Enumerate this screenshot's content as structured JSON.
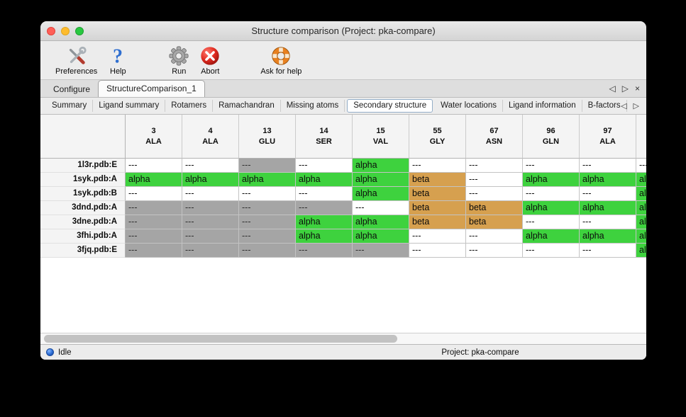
{
  "window": {
    "title": "Structure comparison (Project: pka-compare)"
  },
  "toolbar": {
    "items": [
      {
        "name": "preferences",
        "icon": "tools-icon",
        "label": "Preferences"
      },
      {
        "name": "help",
        "icon": "question-icon",
        "label": "Help"
      },
      {
        "name": "run",
        "icon": "gear-icon",
        "label": "Run"
      },
      {
        "name": "abort",
        "icon": "abort-icon",
        "label": "Abort"
      },
      {
        "name": "ask-for-help",
        "icon": "lifebuoy-icon",
        "label": "Ask for help"
      }
    ]
  },
  "tabbar": {
    "tabs": [
      {
        "label": "Configure",
        "selected": false
      },
      {
        "label": "StructureComparison_1",
        "selected": true
      }
    ],
    "controls": {
      "prev": "◁",
      "next": "▷",
      "close": "×"
    }
  },
  "subtabbar": {
    "tabs": [
      {
        "label": "Summary",
        "selected": false
      },
      {
        "label": "Ligand summary",
        "selected": false
      },
      {
        "label": "Rotamers",
        "selected": false
      },
      {
        "label": "Ramachandran",
        "selected": false
      },
      {
        "label": "Missing atoms",
        "selected": false
      },
      {
        "label": "Secondary structure",
        "selected": true
      },
      {
        "label": "Water locations",
        "selected": false
      },
      {
        "label": "Ligand information",
        "selected": false
      },
      {
        "label": "B-factors",
        "selected": false
      }
    ],
    "controls": {
      "prev": "◁",
      "next": "▷"
    }
  },
  "table": {
    "columns": [
      {
        "num": "3",
        "res": "ALA"
      },
      {
        "num": "4",
        "res": "ALA"
      },
      {
        "num": "13",
        "res": "GLU"
      },
      {
        "num": "14",
        "res": "SER"
      },
      {
        "num": "15",
        "res": "VAL"
      },
      {
        "num": "55",
        "res": "GLY"
      },
      {
        "num": "67",
        "res": "ASN"
      },
      {
        "num": "96",
        "res": "GLN"
      },
      {
        "num": "97",
        "res": "ALA"
      },
      {
        "num": "",
        "res": ""
      }
    ],
    "rows": [
      {
        "label": "1l3r.pdb:E",
        "cells": [
          {
            "text": "---",
            "type": "blank"
          },
          {
            "text": "---",
            "type": "blank"
          },
          {
            "text": "---",
            "type": "gray"
          },
          {
            "text": "---",
            "type": "blank"
          },
          {
            "text": "alpha",
            "type": "alpha"
          },
          {
            "text": "---",
            "type": "blank"
          },
          {
            "text": "---",
            "type": "blank"
          },
          {
            "text": "---",
            "type": "blank"
          },
          {
            "text": "---",
            "type": "blank"
          },
          {
            "text": "---",
            "type": "blank"
          }
        ]
      },
      {
        "label": "1syk.pdb:A",
        "cells": [
          {
            "text": "alpha",
            "type": "alpha"
          },
          {
            "text": "alpha",
            "type": "alpha"
          },
          {
            "text": "alpha",
            "type": "alpha"
          },
          {
            "text": "alpha",
            "type": "alpha"
          },
          {
            "text": "alpha",
            "type": "alpha"
          },
          {
            "text": "beta",
            "type": "beta"
          },
          {
            "text": "---",
            "type": "blank"
          },
          {
            "text": "alpha",
            "type": "alpha"
          },
          {
            "text": "alpha",
            "type": "alpha"
          },
          {
            "text": "alpha",
            "type": "alpha"
          }
        ]
      },
      {
        "label": "1syk.pdb:B",
        "cells": [
          {
            "text": "---",
            "type": "blank"
          },
          {
            "text": "---",
            "type": "blank"
          },
          {
            "text": "---",
            "type": "blank"
          },
          {
            "text": "---",
            "type": "blank"
          },
          {
            "text": "alpha",
            "type": "alpha"
          },
          {
            "text": "beta",
            "type": "beta"
          },
          {
            "text": "---",
            "type": "blank"
          },
          {
            "text": "---",
            "type": "blank"
          },
          {
            "text": "---",
            "type": "blank"
          },
          {
            "text": "alpha",
            "type": "alpha"
          }
        ]
      },
      {
        "label": "3dnd.pdb:A",
        "cells": [
          {
            "text": "---",
            "type": "gray"
          },
          {
            "text": "---",
            "type": "gray"
          },
          {
            "text": "---",
            "type": "gray"
          },
          {
            "text": "---",
            "type": "gray"
          },
          {
            "text": "---",
            "type": "blank"
          },
          {
            "text": "beta",
            "type": "beta"
          },
          {
            "text": "beta",
            "type": "beta"
          },
          {
            "text": "alpha",
            "type": "alpha"
          },
          {
            "text": "alpha",
            "type": "alpha"
          },
          {
            "text": "alpha",
            "type": "alpha"
          }
        ]
      },
      {
        "label": "3dne.pdb:A",
        "cells": [
          {
            "text": "---",
            "type": "gray"
          },
          {
            "text": "---",
            "type": "gray"
          },
          {
            "text": "---",
            "type": "gray"
          },
          {
            "text": "alpha",
            "type": "alpha"
          },
          {
            "text": "alpha",
            "type": "alpha"
          },
          {
            "text": "beta",
            "type": "beta"
          },
          {
            "text": "beta",
            "type": "beta"
          },
          {
            "text": "---",
            "type": "blank"
          },
          {
            "text": "---",
            "type": "blank"
          },
          {
            "text": "alpha",
            "type": "alpha"
          }
        ]
      },
      {
        "label": "3fhi.pdb:A",
        "cells": [
          {
            "text": "---",
            "type": "gray"
          },
          {
            "text": "---",
            "type": "gray"
          },
          {
            "text": "---",
            "type": "gray"
          },
          {
            "text": "alpha",
            "type": "alpha"
          },
          {
            "text": "alpha",
            "type": "alpha"
          },
          {
            "text": "---",
            "type": "blank"
          },
          {
            "text": "---",
            "type": "blank"
          },
          {
            "text": "alpha",
            "type": "alpha"
          },
          {
            "text": "alpha",
            "type": "alpha"
          },
          {
            "text": "alpha",
            "type": "alpha"
          }
        ]
      },
      {
        "label": "3fjq.pdb:E",
        "cells": [
          {
            "text": "---",
            "type": "gray"
          },
          {
            "text": "---",
            "type": "gray"
          },
          {
            "text": "---",
            "type": "gray"
          },
          {
            "text": "---",
            "type": "gray"
          },
          {
            "text": "---",
            "type": "gray"
          },
          {
            "text": "---",
            "type": "blank"
          },
          {
            "text": "---",
            "type": "blank"
          },
          {
            "text": "---",
            "type": "blank"
          },
          {
            "text": "---",
            "type": "blank"
          },
          {
            "text": "alpha",
            "type": "alpha"
          }
        ]
      }
    ]
  },
  "statusbar": {
    "status": "Idle",
    "project": "Project: pka-compare"
  },
  "colors": {
    "alpha": "#3ed23e",
    "beta": "#d6a04f",
    "gray_cell": "#a5a5a5"
  }
}
